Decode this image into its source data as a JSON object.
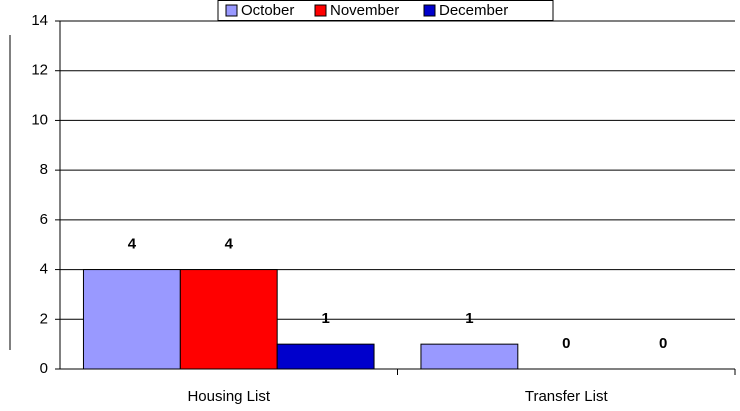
{
  "chart_data": {
    "type": "bar",
    "categories": [
      "Housing List",
      "Transfer List"
    ],
    "series": [
      {
        "name": "October",
        "color": "#9999ff",
        "values": [
          4,
          1
        ]
      },
      {
        "name": "November",
        "color": "#ff0000",
        "values": [
          4,
          0
        ]
      },
      {
        "name": "December",
        "color": "#0000cc",
        "values": [
          1,
          0
        ]
      }
    ],
    "ylim": [
      0,
      14
    ],
    "yticks": [
      0,
      2,
      4,
      6,
      8,
      10,
      12,
      14
    ],
    "grid": true,
    "legend": "top"
  }
}
